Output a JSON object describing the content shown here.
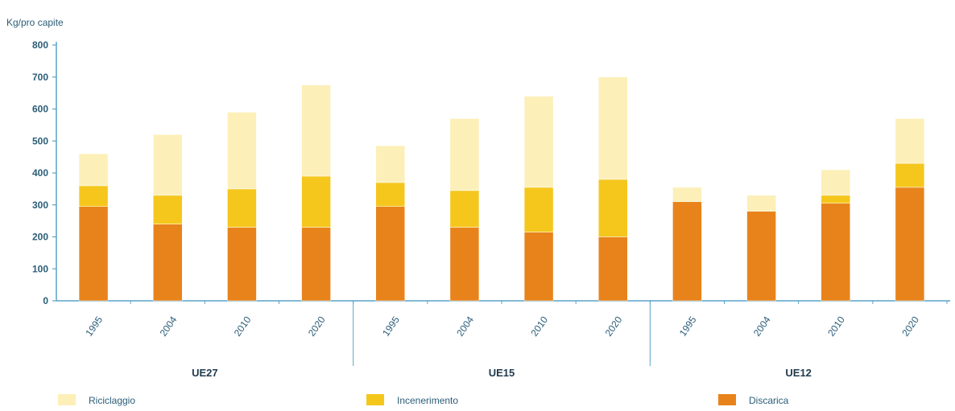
{
  "chart_data": {
    "type": "bar",
    "stacked": true,
    "ylabel": "Kg/pro capite",
    "ylim": [
      0,
      800
    ],
    "yticks": [
      0,
      100,
      200,
      300,
      400,
      500,
      600,
      700,
      800
    ],
    "grid": false,
    "legend_position": "bottom",
    "groups": [
      {
        "name": "UE27",
        "categories": [
          "1995",
          "2004",
          "2010",
          "2020"
        ]
      },
      {
        "name": "UE15",
        "categories": [
          "1995",
          "2004",
          "2010",
          "2020"
        ]
      },
      {
        "name": "UE12",
        "categories": [
          "1995",
          "2004",
          "2010",
          "2020"
        ]
      }
    ],
    "categories": [
      "1995",
      "2004",
      "2010",
      "2020",
      "1995",
      "2004",
      "2010",
      "2020",
      "1995",
      "2004",
      "2010",
      "2020"
    ],
    "series": [
      {
        "name": "Discarica",
        "color": "#e8831c",
        "values": [
          295,
          240,
          230,
          230,
          295,
          230,
          215,
          200,
          310,
          280,
          305,
          355
        ]
      },
      {
        "name": "Incenerimento",
        "color": "#f5c71d",
        "values": [
          65,
          90,
          120,
          160,
          75,
          115,
          140,
          180,
          0,
          0,
          25,
          75
        ]
      },
      {
        "name": "Riciclaggio",
        "color": "#fcefb8",
        "values": [
          100,
          190,
          240,
          285,
          115,
          225,
          285,
          320,
          45,
          50,
          80,
          140
        ]
      }
    ],
    "legend": [
      {
        "name": "Riciclaggio",
        "color": "#fcefb8"
      },
      {
        "name": "Incenerimento",
        "color": "#f5c71d"
      },
      {
        "name": "Discarica",
        "color": "#e8831c"
      }
    ]
  }
}
